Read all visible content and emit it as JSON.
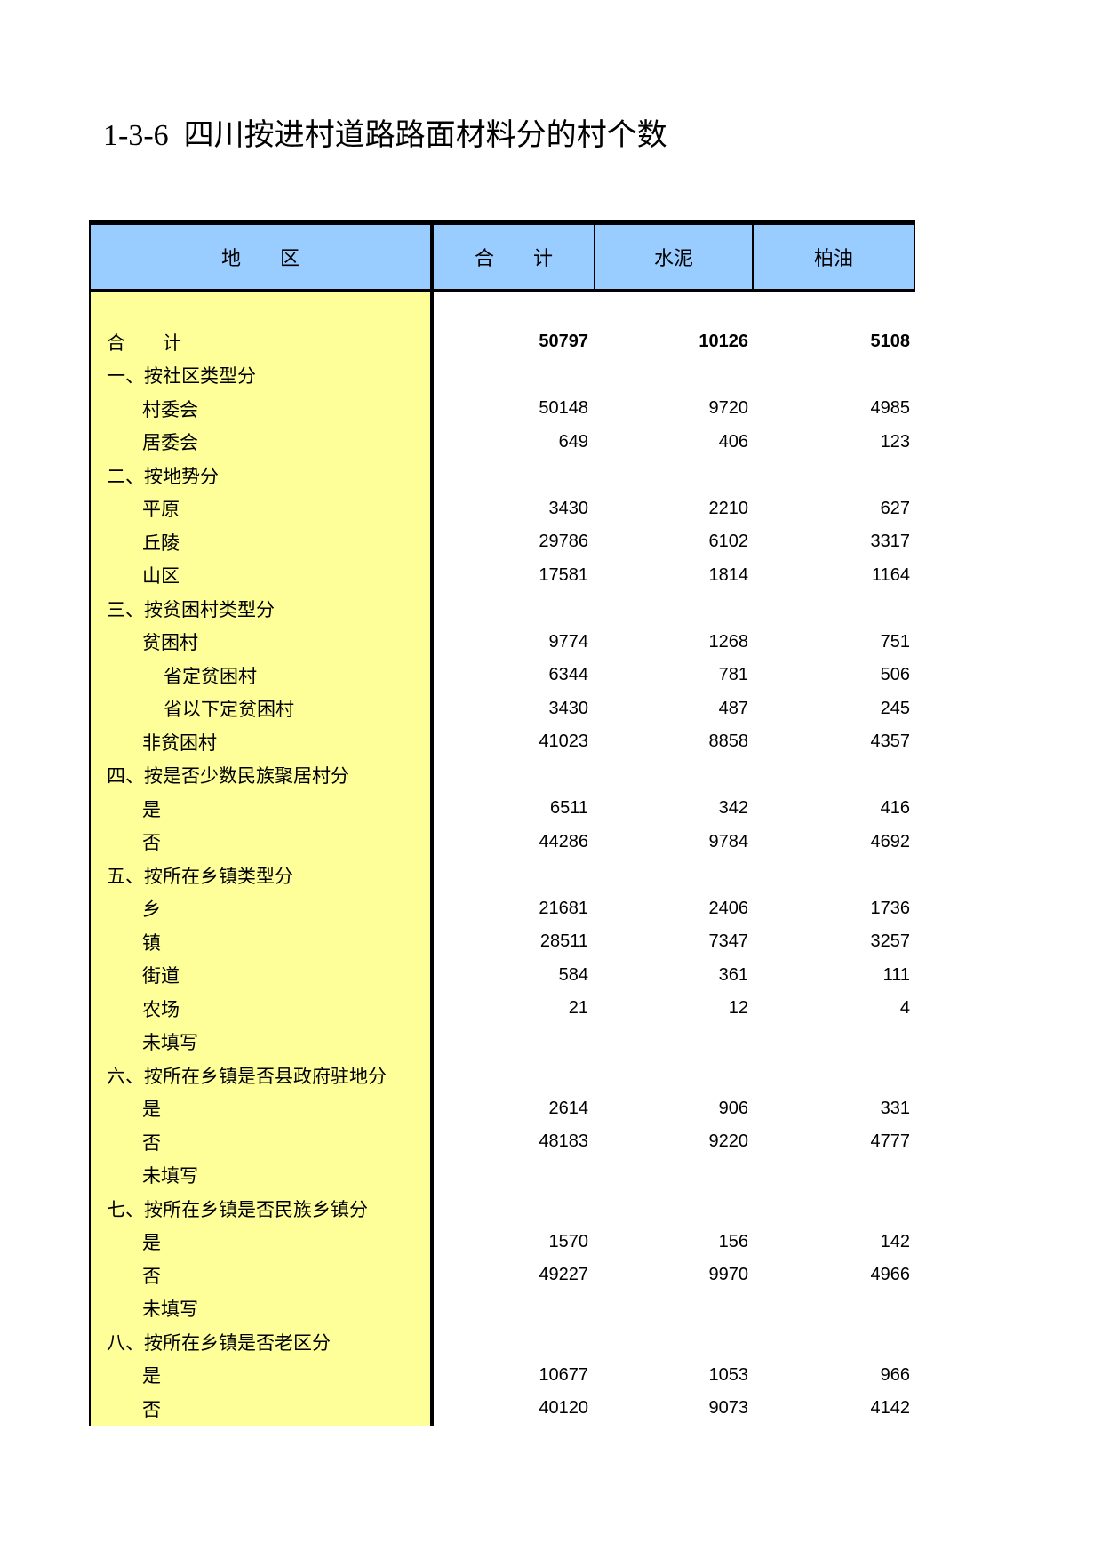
{
  "page": {
    "title": "1-3-6  四川按进村道路路面材料分的村个数"
  },
  "table": {
    "columns": [
      "地　　区",
      "合　　计",
      "水泥",
      "柏油"
    ],
    "colors": {
      "header_bg": "#99CCFF",
      "label_col_bg": "#FFFF99",
      "border": "#000000"
    },
    "rows": [
      {
        "label": "合　　计",
        "indent": 0,
        "bold": true,
        "values": [
          "50797",
          "10126",
          "5108"
        ]
      },
      {
        "label": "一、按社区类型分",
        "indent": 0,
        "bold": false,
        "values": [
          "",
          "",
          ""
        ]
      },
      {
        "label": "村委会",
        "indent": 1,
        "bold": false,
        "values": [
          "50148",
          "9720",
          "4985"
        ]
      },
      {
        "label": "居委会",
        "indent": 1,
        "bold": false,
        "values": [
          "649",
          "406",
          "123"
        ]
      },
      {
        "label": "二、按地势分",
        "indent": 0,
        "bold": false,
        "values": [
          "",
          "",
          ""
        ]
      },
      {
        "label": "平原",
        "indent": 1,
        "bold": false,
        "values": [
          "3430",
          "2210",
          "627"
        ]
      },
      {
        "label": "丘陵",
        "indent": 1,
        "bold": false,
        "values": [
          "29786",
          "6102",
          "3317"
        ]
      },
      {
        "label": "山区",
        "indent": 1,
        "bold": false,
        "values": [
          "17581",
          "1814",
          "1164"
        ]
      },
      {
        "label": "三、按贫困村类型分",
        "indent": 0,
        "bold": false,
        "values": [
          "",
          "",
          ""
        ]
      },
      {
        "label": "贫困村",
        "indent": 1,
        "bold": false,
        "values": [
          "9774",
          "1268",
          "751"
        ]
      },
      {
        "label": "省定贫困村",
        "indent": 2,
        "bold": false,
        "values": [
          "6344",
          "781",
          "506"
        ]
      },
      {
        "label": "省以下定贫困村",
        "indent": 2,
        "bold": false,
        "values": [
          "3430",
          "487",
          "245"
        ]
      },
      {
        "label": "非贫困村",
        "indent": 1,
        "bold": false,
        "values": [
          "41023",
          "8858",
          "4357"
        ]
      },
      {
        "label": "四、按是否少数民族聚居村分",
        "indent": 0,
        "bold": false,
        "values": [
          "",
          "",
          ""
        ]
      },
      {
        "label": "是",
        "indent": 1,
        "bold": false,
        "values": [
          "6511",
          "342",
          "416"
        ]
      },
      {
        "label": "否",
        "indent": 1,
        "bold": false,
        "values": [
          "44286",
          "9784",
          "4692"
        ]
      },
      {
        "label": "五、按所在乡镇类型分",
        "indent": 0,
        "bold": false,
        "values": [
          "",
          "",
          ""
        ]
      },
      {
        "label": "乡",
        "indent": 1,
        "bold": false,
        "values": [
          "21681",
          "2406",
          "1736"
        ]
      },
      {
        "label": "镇",
        "indent": 1,
        "bold": false,
        "values": [
          "28511",
          "7347",
          "3257"
        ]
      },
      {
        "label": "街道",
        "indent": 1,
        "bold": false,
        "values": [
          "584",
          "361",
          "111"
        ]
      },
      {
        "label": "农场",
        "indent": 1,
        "bold": false,
        "values": [
          "21",
          "12",
          "4"
        ]
      },
      {
        "label": "未填写",
        "indent": 1,
        "bold": false,
        "values": [
          "",
          "",
          ""
        ]
      },
      {
        "label": "六、按所在乡镇是否县政府驻地分",
        "indent": 0,
        "bold": false,
        "values": [
          "",
          "",
          ""
        ]
      },
      {
        "label": "是",
        "indent": 1,
        "bold": false,
        "values": [
          "2614",
          "906",
          "331"
        ]
      },
      {
        "label": "否",
        "indent": 1,
        "bold": false,
        "values": [
          "48183",
          "9220",
          "4777"
        ]
      },
      {
        "label": "未填写",
        "indent": 1,
        "bold": false,
        "values": [
          "",
          "",
          ""
        ]
      },
      {
        "label": "七、按所在乡镇是否民族乡镇分",
        "indent": 0,
        "bold": false,
        "values": [
          "",
          "",
          ""
        ]
      },
      {
        "label": "是",
        "indent": 1,
        "bold": false,
        "values": [
          "1570",
          "156",
          "142"
        ]
      },
      {
        "label": "否",
        "indent": 1,
        "bold": false,
        "values": [
          "49227",
          "9970",
          "4966"
        ]
      },
      {
        "label": "未填写",
        "indent": 1,
        "bold": false,
        "values": [
          "",
          "",
          ""
        ]
      },
      {
        "label": "八、按所在乡镇是否老区分",
        "indent": 0,
        "bold": false,
        "values": [
          "",
          "",
          ""
        ]
      },
      {
        "label": "是",
        "indent": 1,
        "bold": false,
        "values": [
          "10677",
          "1053",
          "966"
        ]
      },
      {
        "label": "否",
        "indent": 1,
        "bold": false,
        "values": [
          "40120",
          "9073",
          "4142"
        ]
      }
    ]
  }
}
